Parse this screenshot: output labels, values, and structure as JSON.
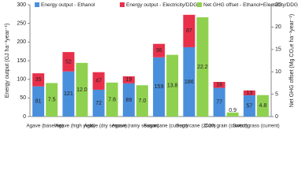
{
  "chart_data": {
    "type": "stacked-bar-dual",
    "categories": [
      "Agave (baseline)",
      "Agave (high yield)",
      "Agave (dry season)",
      "Agave (rainy season)",
      "Sugarcane (current)",
      "Sugarcane (2020)",
      "Corn grain (current)",
      "Switchgrass (current)"
    ],
    "series": [
      {
        "name": "Energy output - Ethanol",
        "color": "#4a8fdc",
        "values": [
          81,
          121,
          72,
          89,
          159,
          186,
          77,
          57
        ]
      },
      {
        "name": "Energy output - Electricity/DDGS",
        "color": "#e8304b",
        "values": [
          35,
          52,
          47,
          19,
          36,
          87,
          16,
          13
        ]
      },
      {
        "name": "Net GHG offset - Ethanol+Electricity/DDGS",
        "color": "#8fd14f",
        "axis": "y2",
        "values": [
          7.5,
          12.0,
          7.6,
          7.0,
          13.8,
          22.2,
          0.9,
          4.8
        ],
        "value_labels": [
          "7.5",
          "12.0",
          "7.6",
          "7.0",
          "13.8",
          "22.2",
          "0.9",
          "4.8"
        ]
      }
    ],
    "ylabel": "Energy output (GJ ha⁻¹year⁻¹)",
    "y2label": "Net GHG offset (Mg CO₂e ha⁻¹year⁻¹)",
    "ylim": [
      0,
      300
    ],
    "yticks": [
      0,
      50,
      100,
      150,
      200,
      250,
      300
    ],
    "y2lim": [
      0,
      25
    ],
    "y2ticks": [
      0,
      5,
      10,
      15,
      20,
      25
    ],
    "legend": "top",
    "grid": false
  }
}
